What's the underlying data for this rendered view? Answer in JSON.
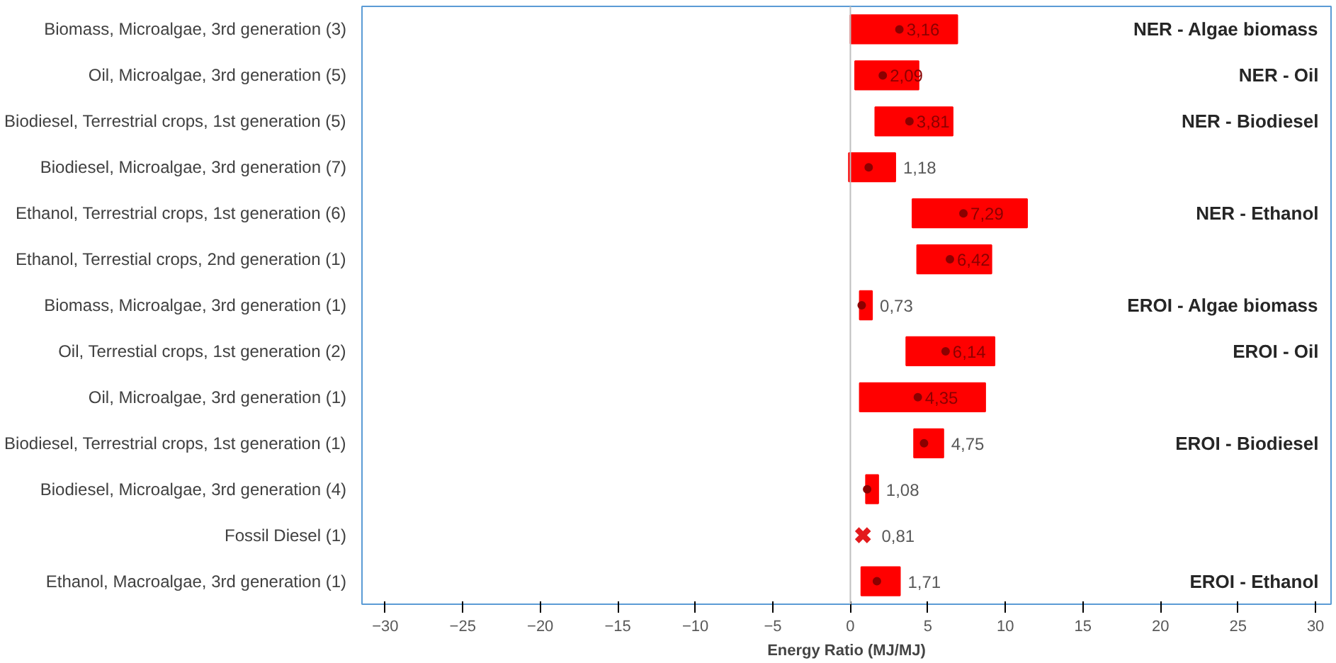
{
  "chart_data": {
    "type": "bar",
    "orientation": "horizontal",
    "xlabel": "Energy Ratio (MJ/MJ)",
    "categories": [
      "Biomass, Microalgae, 3rd generation (3)",
      "Oil, Microalgae, 3rd generation (5)",
      "Biodiesel, Terrestrial crops, 1st generation (5)",
      "Biodiesel, Microalgae, 3rd generation (7)",
      "Ethanol, Terrestrial crops, 1st generation (6)",
      "Ethanol, Terrestial crops, 2nd generation (1)",
      "Biomass, Microalgae, 3rd generation (1)",
      "Oil, Terrestial crops, 1st generation (2)",
      "Oil, Microalgae, 3rd generation (1)",
      "Biodiesel, Terrestrial crops, 1st generation (1)",
      "Biodiesel, Microalgae, 3rd generation (4)",
      "Fossil Diesel (1)",
      "Ethanol, Macroalgae, 3rd generation (1)"
    ],
    "y2_categories": [
      "NER - Algae biomass",
      "NER - Oil",
      "NER - Biodiesel",
      null,
      "NER - Ethanol",
      null,
      "EROI - Algae biomass",
      "EROI - Oil",
      null,
      "EROI - Biodiesel",
      null,
      null,
      "EROI - Ethanol"
    ],
    "series": [
      {
        "type": "bar",
        "color": "#ff0000",
        "base": [
          0,
          0.3,
          1.6,
          -0.1,
          4.0,
          4.3,
          0.6,
          3.6,
          0.6,
          4.1,
          1.0,
          null,
          0.7
        ],
        "values": [
          6.9,
          4.1,
          5.0,
          3.0,
          7.4,
          4.8,
          0.8,
          5.7,
          8.1,
          1.9,
          0.8,
          null,
          2.5
        ]
      },
      {
        "type": "scatter",
        "marker": "circle",
        "color": "#8b0000",
        "values": [
          3.16,
          2.09,
          3.81,
          1.18,
          7.29,
          6.42,
          0.73,
          6.14,
          4.35,
          4.75,
          1.08,
          null,
          1.71
        ],
        "value_labels": [
          "3,16",
          "2,09",
          "3,81",
          "1,18",
          "7,29",
          "6,42",
          "0,73",
          "6,14",
          "4,35",
          "4,75",
          "1,08",
          null,
          "1,71"
        ]
      },
      {
        "type": "scatter",
        "marker": "cross",
        "color": "#e31a1c",
        "values": [
          null,
          null,
          null,
          null,
          null,
          null,
          null,
          null,
          null,
          null,
          null,
          0.81,
          null
        ],
        "value_labels": [
          null,
          null,
          null,
          null,
          null,
          null,
          null,
          null,
          null,
          null,
          null,
          "0,81",
          null
        ]
      }
    ],
    "xlim": [
      -31.5,
      31
    ],
    "xticks": [
      -30,
      -25,
      -20,
      -15,
      -10,
      -5,
      0,
      5,
      10,
      15,
      20,
      25,
      30
    ],
    "ref_lines": [
      {
        "axis": "x",
        "value": 0,
        "color": "#bfbfbf"
      }
    ]
  }
}
